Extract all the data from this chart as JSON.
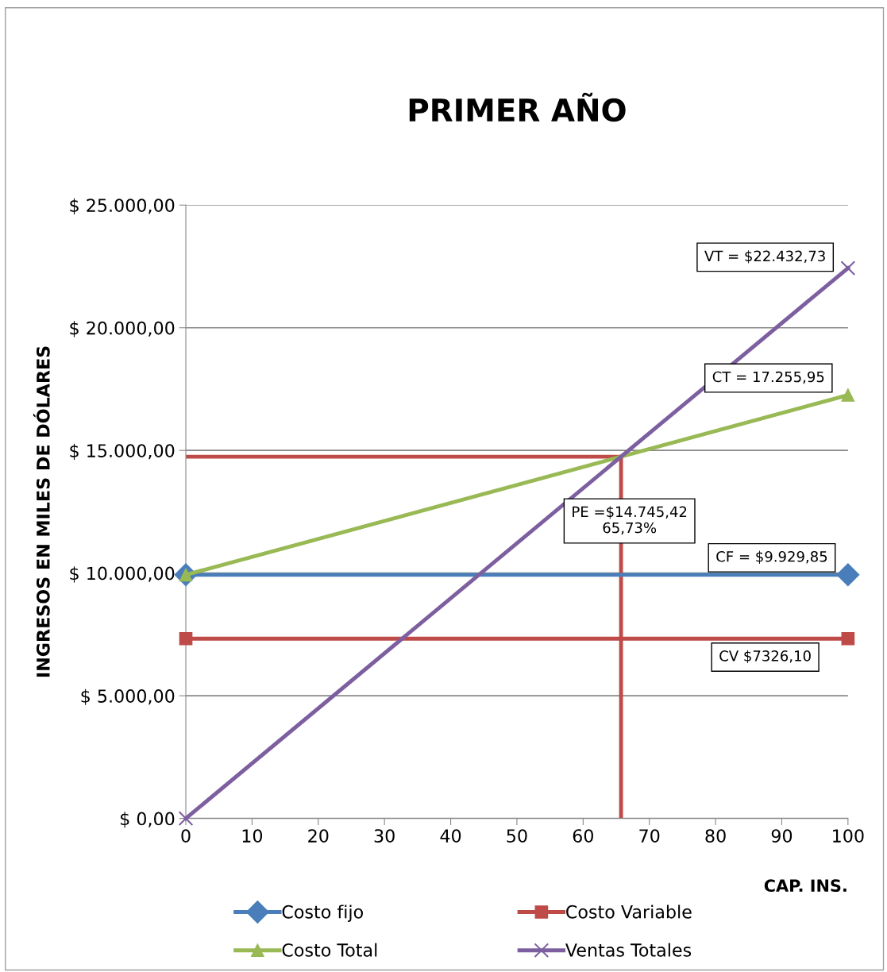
{
  "chart_data": {
    "type": "line",
    "title": "PRIMER AÑO",
    "xlabel": "CAP. INS.",
    "ylabel": "INGRESOS EN MILES DE DÓLARES",
    "x": [
      0,
      100
    ],
    "series": [
      {
        "name": "Costo fijo",
        "color": "#4a7ebb",
        "values": [
          9929.85,
          9929.85
        ],
        "marker": "diamond"
      },
      {
        "name": "Costo Variable",
        "color": "#be4b48",
        "values": [
          7326.1,
          7326.1
        ],
        "marker": "square"
      },
      {
        "name": "Costo Total",
        "color": "#98b954",
        "values": [
          9929.85,
          17255.95
        ],
        "marker": "triangle"
      },
      {
        "name": "Ventas Totales",
        "color": "#7d5fa0",
        "values": [
          0,
          22432.73
        ],
        "marker": "cross"
      }
    ],
    "ref_lines": [
      {
        "axis": "y",
        "value": 14745.42,
        "color": "#be4b48"
      },
      {
        "axis": "x",
        "value": 65.73,
        "color": "#be4b48"
      }
    ],
    "xlim": [
      0,
      100
    ],
    "xticks": [
      0,
      10,
      20,
      30,
      40,
      50,
      60,
      70,
      80,
      90,
      100
    ],
    "ylim": [
      0,
      25000
    ],
    "yticks": [
      {
        "value": 0,
        "label": "$ 0,00"
      },
      {
        "value": 5000,
        "label": "$ 5.000,00"
      },
      {
        "value": 10000,
        "label": "$ 10.000,00"
      },
      {
        "value": 15000,
        "label": "$ 15.000,00"
      },
      {
        "value": 20000,
        "label": "$ 20.000,00"
      },
      {
        "value": 25000,
        "label": "$ 25.000,00"
      }
    ],
    "grid": "y",
    "legend": "bottom",
    "annotations": [
      "VT = $22.432,73",
      "CT = 17.255,95",
      "PE =$14.745,42\n65,73%",
      "CF = $9.929,85",
      "CV $7326,10"
    ]
  }
}
